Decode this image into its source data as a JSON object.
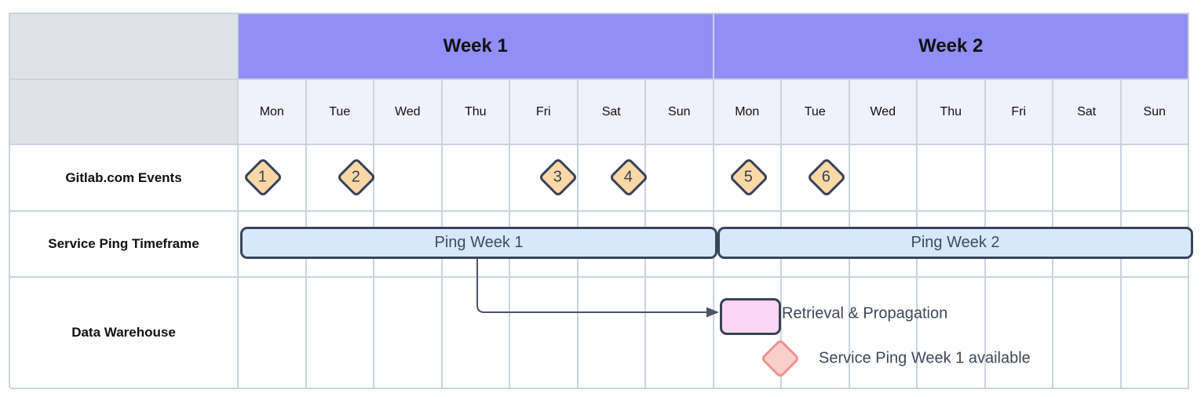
{
  "diagram": {
    "weeks": [
      {
        "label": "Week 1"
      },
      {
        "label": "Week 2"
      }
    ],
    "days": [
      "Mon",
      "Tue",
      "Wed",
      "Thu",
      "Fri",
      "Sat",
      "Sun",
      "Mon",
      "Tue",
      "Wed",
      "Thu",
      "Fri",
      "Sat",
      "Sun"
    ],
    "row_labels": [
      "Gitlab.com Events",
      "Service Ping Timeframe",
      "Data Warehouse"
    ],
    "events": [
      {
        "label": "1",
        "week": "Week 1",
        "day": "Mon"
      },
      {
        "label": "2",
        "week": "Week 1",
        "day": "Tue"
      },
      {
        "label": "3",
        "week": "Week 1",
        "day": "Fri"
      },
      {
        "label": "4",
        "week": "Week 1",
        "day": "Sat"
      },
      {
        "label": "5",
        "week": "Week 2",
        "day": "Mon"
      },
      {
        "label": "6",
        "week": "Week 2",
        "day": "Tue"
      }
    ],
    "bars": [
      {
        "label": "Ping Week 1",
        "week": "Week 1"
      },
      {
        "label": "Ping Week 2",
        "week": "Week 2"
      }
    ],
    "annotations": {
      "retrieval": "Retrieval & Propagation",
      "available": "Service Ping Week 1 available"
    },
    "colors": {
      "week_header_bg": "#918ef5",
      "day_header_bg": "#f1f1fc",
      "corner_bg": "#e0e2e7",
      "grid_border": "#ccd3de",
      "event_fill": "#f9d8a6",
      "event_border": "#36415a",
      "bar_fill": "#d7e8fc",
      "bar_border": "#39455a",
      "retrieval_fill": "#fbd6f2",
      "retrieval_border": "#3a4150",
      "milestone_fill": "#f9cfcb",
      "milestone_border": "#f0928d",
      "annotation_text": "#3e4756"
    }
  }
}
